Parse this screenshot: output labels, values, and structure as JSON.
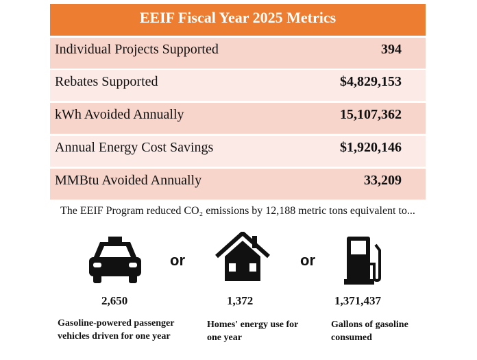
{
  "title": "EEIF Fiscal Year 2025 Metrics",
  "metrics": [
    {
      "label": "Individual Projects Supported",
      "value": "394"
    },
    {
      "label": "Rebates Supported",
      "value": "$4,829,153"
    },
    {
      "label": "kWh Avoided Annually",
      "value": "15,107,362"
    },
    {
      "label": "Annual Energy Cost Savings",
      "value": "$1,920,146"
    },
    {
      "label": "MMBtu Avoided Annually",
      "value": "33,209"
    }
  ],
  "intro": "The EEIF Program reduced CO₂ emissions by 12,188 metric tons equivalent to...",
  "or": "or",
  "equivalents": [
    {
      "icon": "car-icon",
      "number": "2,650",
      "caption": "Gasoline-powered passenger vehicles driven for one year"
    },
    {
      "icon": "house-icon",
      "number": "1,372",
      "caption": "Homes' energy use for one year"
    },
    {
      "icon": "gas-pump-icon",
      "number": "1,371,437",
      "caption": "Gallons of gasoline consumed"
    }
  ]
}
